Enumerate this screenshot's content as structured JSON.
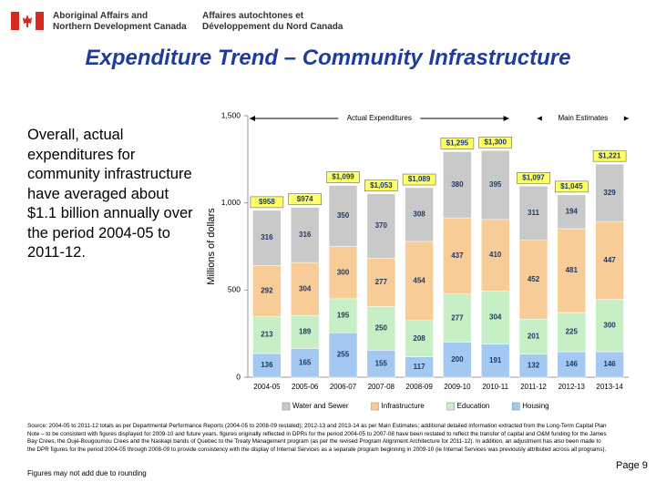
{
  "header": {
    "org_en": [
      "Aboriginal Affairs and",
      "Northern Development Canada"
    ],
    "org_fr": [
      "Affaires autochtones et",
      "Développement du Nord Canada"
    ]
  },
  "title": "Expenditure Trend – Community Infrastructure",
  "body_text": "Overall, actual expenditures for community infrastructure have averaged about $1.1 billion annually over the period 2004-05 to 2011-12.",
  "chart_data": {
    "type": "stacked_bar",
    "categories": [
      "2004-05",
      "2005-06",
      "2006-07",
      "2007-08",
      "2008-09",
      "2009-10",
      "2010-11",
      "2011-12",
      "2012-13",
      "2013-14"
    ],
    "series": [
      {
        "name": "Housing",
        "color": "#a3c8f2",
        "values": [
          136,
          165,
          255,
          155,
          117,
          200,
          191,
          132,
          146,
          146
        ]
      },
      {
        "name": "Education",
        "color": "#c6efc6",
        "values": [
          213,
          189,
          195,
          250,
          208,
          277,
          304,
          201,
          225,
          300
        ]
      },
      {
        "name": "Infrastructure",
        "color": "#f7cc96",
        "values": [
          292,
          304,
          300,
          277,
          454,
          437,
          410,
          452,
          481,
          447
        ]
      },
      {
        "name": "Water and Sewer",
        "color": "#c9c9c9",
        "values": [
          316,
          316,
          350,
          370,
          308,
          380,
          395,
          311,
          194,
          329
        ]
      }
    ],
    "totals": {
      "values": [
        958,
        974,
        1099,
        1053,
        1089,
        1295,
        1300,
        1097,
        1045,
        1221
      ],
      "value_labels": [
        "$958",
        "$974",
        "$1,099",
        "$1,053",
        "$1,089",
        "$1,295",
        "$1,300",
        "$1,097",
        "$1,045",
        "$1,221"
      ]
    },
    "ylabel": "Millions of dollars",
    "ylim": [
      0,
      1500
    ],
    "yticks": [
      0,
      500,
      {
        "value": 1000,
        "label": "1,000"
      },
      {
        "value": 1500,
        "label": "1,500"
      }
    ],
    "annotations": [
      "Actual Expenditures",
      "Main Estimates"
    ]
  },
  "source": "Source: 2004-05 to 2011-12 totals as per Departmental Performance Reports (2004-05 to 2008-09 restated); 2012-13 and 2013-14 as per Main Estimates; additional detailed information extracted from the Long-Term Capital Plan Note – to be consistent with figures displayed for 2009-10 and future years, figures originally reflected in DPRs for the period 2004-05 to 2007-08 have been restated to reflect the transfer of capital and O&M funding for the James Bay Crees, the Oujé-Bougoumou Crees and the Naskapi bands of Quebec to the Treaty Management program (as per the revised Program Alignment Architecture for 2011-12). In addition, an adjustment has also been made to the DPR figures for the period 2004-05 through 2008-09 to provide consistency with the display of Internal Services as a separate program beginning in 2009-10 (ie Internal Services was previously attributed across all programs).",
  "footnote": "Figures may not add due to rounding",
  "page": "Page 9"
}
